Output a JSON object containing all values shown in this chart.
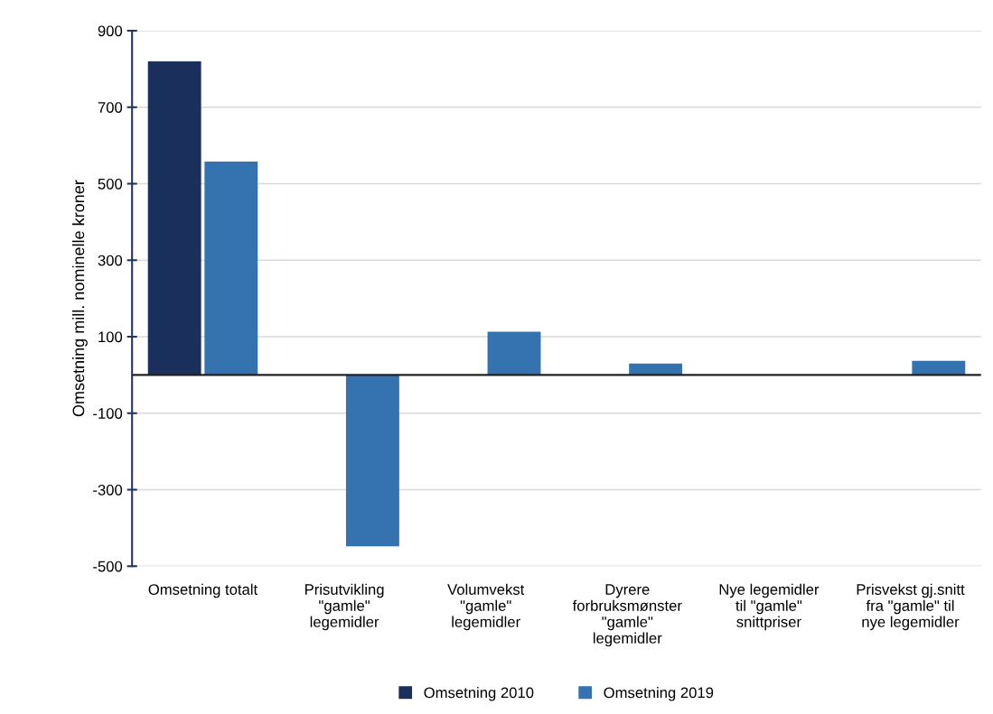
{
  "chart_data": {
    "type": "bar",
    "ylabel": "Omsetning mill. nominelle kroner",
    "categories": [
      "Omsetning totalt",
      "Prisutvikling\n\"gamle\"\nlegemidler",
      "Volumvekst\n\"gamle\"\nlegemidler",
      "Dyrere\nforbruksmønster\n\"gamle\"\nlegemidler",
      "Nye legemidler\ntil \"gamle\"\nsnittpriser",
      "Prisvekst gj.snitt\nfra \"gamle\" til\nnye legemidler"
    ],
    "series": [
      {
        "name": "Omsetning 2010",
        "color": "#1a2f5c",
        "values": [
          820,
          null,
          null,
          null,
          null,
          null
        ]
      },
      {
        "name": "Omsetning 2019",
        "color": "#3572b0",
        "values": [
          558,
          -448,
          113,
          30,
          null,
          37
        ]
      }
    ],
    "ylim": [
      -500,
      900
    ],
    "yticks": [
      -500,
      -300,
      -100,
      100,
      300,
      500,
      700,
      900
    ],
    "grid": "y",
    "legend": "bottom"
  }
}
